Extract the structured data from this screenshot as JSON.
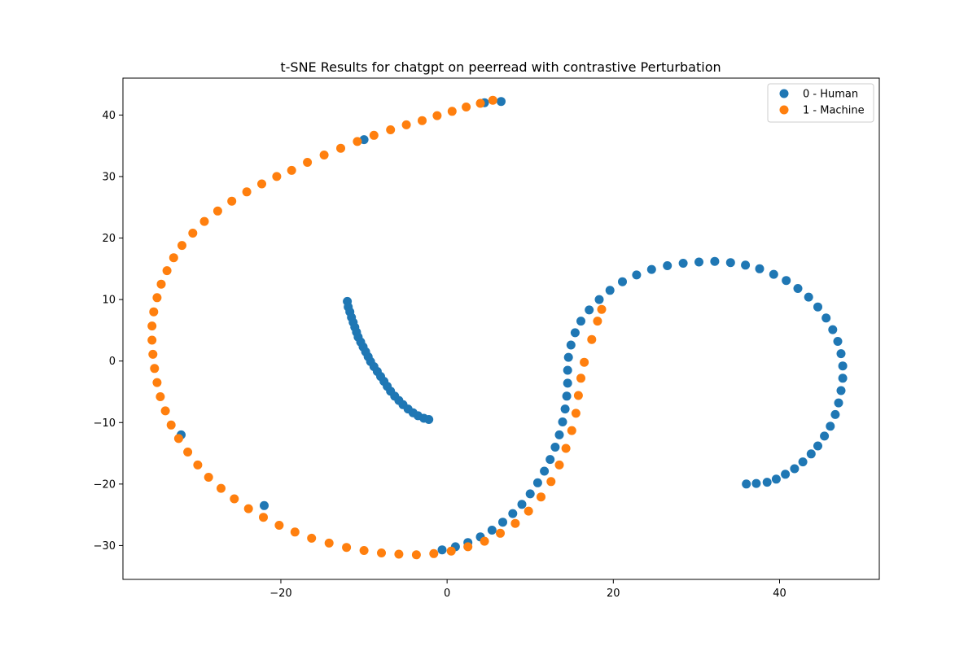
{
  "chart_data": {
    "type": "scatter",
    "title": "t-SNE Results for chatgpt on peerread with contrastive Perturbation",
    "xlabel": "",
    "ylabel": "",
    "xlim": [
      -39,
      52
    ],
    "ylim": [
      -35.5,
      46
    ],
    "xticks": [
      -20,
      0,
      20,
      40
    ],
    "yticks": [
      -30,
      -20,
      -10,
      0,
      10,
      20,
      30,
      40
    ],
    "legend_position": "top-right",
    "series": [
      {
        "name": "0 - Human",
        "color": "#1f77b4",
        "points": [
          [
            -12,
            9.7
          ],
          [
            -11.9,
            8.8
          ],
          [
            -11.7,
            8.0
          ],
          [
            -11.5,
            7.1
          ],
          [
            -11.3,
            6.3
          ],
          [
            -11.1,
            5.5
          ],
          [
            -10.9,
            4.7
          ],
          [
            -10.7,
            3.9
          ],
          [
            -10.4,
            3.1
          ],
          [
            -10.1,
            2.3
          ],
          [
            -9.8,
            1.5
          ],
          [
            -9.5,
            0.7
          ],
          [
            -9.2,
            -0.1
          ],
          [
            -8.8,
            -0.9
          ],
          [
            -8.4,
            -1.7
          ],
          [
            -8.0,
            -2.5
          ],
          [
            -7.6,
            -3.3
          ],
          [
            -7.2,
            -4.1
          ],
          [
            -6.8,
            -4.9
          ],
          [
            -6.3,
            -5.7
          ],
          [
            -5.8,
            -6.4
          ],
          [
            -5.3,
            -7.1
          ],
          [
            -4.7,
            -7.8
          ],
          [
            -4.1,
            -8.4
          ],
          [
            -3.5,
            -8.9
          ],
          [
            -2.8,
            -9.3
          ],
          [
            -2.2,
            -9.5
          ],
          [
            36,
            -20
          ],
          [
            37.2,
            -19.9
          ],
          [
            38.5,
            -19.7
          ],
          [
            39.6,
            -19.2
          ],
          [
            40.7,
            -18.4
          ],
          [
            41.8,
            -17.5
          ],
          [
            42.8,
            -16.4
          ],
          [
            43.8,
            -15.1
          ],
          [
            44.6,
            -13.8
          ],
          [
            45.4,
            -12.2
          ],
          [
            46.1,
            -10.6
          ],
          [
            46.7,
            -8.7
          ],
          [
            47.1,
            -6.8
          ],
          [
            47.4,
            -4.8
          ],
          [
            47.6,
            -2.8
          ],
          [
            47.6,
            -0.8
          ],
          [
            47.4,
            1.2
          ],
          [
            47.0,
            3.2
          ],
          [
            46.4,
            5.1
          ],
          [
            45.6,
            7.0
          ],
          [
            44.6,
            8.8
          ],
          [
            43.5,
            10.4
          ],
          [
            42.2,
            11.8
          ],
          [
            40.8,
            13.1
          ],
          [
            39.3,
            14.1
          ],
          [
            37.6,
            15.0
          ],
          [
            35.9,
            15.6
          ],
          [
            34.1,
            16.0
          ],
          [
            32.2,
            16.2
          ],
          [
            30.3,
            16.1
          ],
          [
            28.4,
            15.9
          ],
          [
            26.5,
            15.5
          ],
          [
            24.6,
            14.9
          ],
          [
            22.8,
            14.0
          ],
          [
            21.1,
            12.9
          ],
          [
            19.6,
            11.5
          ],
          [
            18.3,
            10.0
          ],
          [
            17.1,
            8.3
          ],
          [
            16.1,
            6.5
          ],
          [
            15.4,
            4.6
          ],
          [
            14.9,
            2.6
          ],
          [
            14.6,
            0.6
          ],
          [
            14.5,
            -1.5
          ],
          [
            14.5,
            -3.6
          ],
          [
            14.4,
            -5.7
          ],
          [
            14.2,
            -7.8
          ],
          [
            13.9,
            -9.9
          ],
          [
            13.5,
            -12.0
          ],
          [
            13.0,
            -14.0
          ],
          [
            12.4,
            -16.0
          ],
          [
            11.7,
            -17.9
          ],
          [
            10.9,
            -19.8
          ],
          [
            10.0,
            -21.6
          ],
          [
            9.0,
            -23.3
          ],
          [
            7.9,
            -24.8
          ],
          [
            6.7,
            -26.2
          ],
          [
            5.4,
            -27.5
          ],
          [
            4.0,
            -28.6
          ],
          [
            2.5,
            -29.5
          ],
          [
            1.0,
            -30.2
          ],
          [
            -0.6,
            -30.7
          ],
          [
            -10,
            36
          ],
          [
            4.5,
            42
          ],
          [
            6.5,
            42.2
          ],
          [
            -32,
            -12
          ],
          [
            -22,
            -23.5
          ]
        ]
      },
      {
        "name": "1 - Machine",
        "color": "#ff7f0e",
        "points": [
          [
            5.5,
            42.4
          ],
          [
            4.0,
            41.9
          ],
          [
            2.3,
            41.3
          ],
          [
            0.6,
            40.6
          ],
          [
            -1.2,
            39.9
          ],
          [
            -3.0,
            39.1
          ],
          [
            -4.9,
            38.4
          ],
          [
            -6.8,
            37.6
          ],
          [
            -8.8,
            36.7
          ],
          [
            -10.8,
            35.7
          ],
          [
            -12.8,
            34.6
          ],
          [
            -14.8,
            33.5
          ],
          [
            -16.8,
            32.3
          ],
          [
            -18.7,
            31.0
          ],
          [
            -20.5,
            30.0
          ],
          [
            -22.3,
            28.8
          ],
          [
            -24.1,
            27.5
          ],
          [
            -25.9,
            26.0
          ],
          [
            -27.6,
            24.4
          ],
          [
            -29.2,
            22.7
          ],
          [
            -30.6,
            20.8
          ],
          [
            -31.9,
            18.8
          ],
          [
            -32.9,
            16.8
          ],
          [
            -33.7,
            14.7
          ],
          [
            -34.4,
            12.5
          ],
          [
            -34.9,
            10.3
          ],
          [
            -35.3,
            8.0
          ],
          [
            -35.5,
            5.7
          ],
          [
            -35.5,
            3.4
          ],
          [
            -35.4,
            1.1
          ],
          [
            -35.2,
            -1.2
          ],
          [
            -34.9,
            -3.5
          ],
          [
            -34.5,
            -5.8
          ],
          [
            -33.9,
            -8.1
          ],
          [
            -33.2,
            -10.4
          ],
          [
            -32.3,
            -12.6
          ],
          [
            -31.2,
            -14.8
          ],
          [
            -30.0,
            -16.9
          ],
          [
            -28.7,
            -18.9
          ],
          [
            -27.2,
            -20.7
          ],
          [
            -25.6,
            -22.4
          ],
          [
            -23.9,
            -24.0
          ],
          [
            -22.1,
            -25.4
          ],
          [
            -20.2,
            -26.7
          ],
          [
            -18.3,
            -27.8
          ],
          [
            -16.3,
            -28.8
          ],
          [
            -14.2,
            -29.6
          ],
          [
            -12.1,
            -30.3
          ],
          [
            -10.0,
            -30.8
          ],
          [
            -7.9,
            -31.2
          ],
          [
            -5.8,
            -31.4
          ],
          [
            -3.7,
            -31.5
          ],
          [
            -1.6,
            -31.3
          ],
          [
            0.5,
            -30.9
          ],
          [
            2.5,
            -30.2
          ],
          [
            4.5,
            -29.3
          ],
          [
            6.4,
            -28.0
          ],
          [
            8.2,
            -26.4
          ],
          [
            9.8,
            -24.4
          ],
          [
            11.3,
            -22.1
          ],
          [
            12.5,
            -19.6
          ],
          [
            13.5,
            -16.9
          ],
          [
            14.3,
            -14.2
          ],
          [
            15.0,
            -11.3
          ],
          [
            15.5,
            -8.5
          ],
          [
            15.8,
            -5.6
          ],
          [
            16.1,
            -2.8
          ],
          [
            16.5,
            -0.2
          ],
          [
            17.4,
            3.5
          ],
          [
            18.1,
            6.5
          ],
          [
            18.6,
            8.4
          ]
        ]
      }
    ]
  }
}
